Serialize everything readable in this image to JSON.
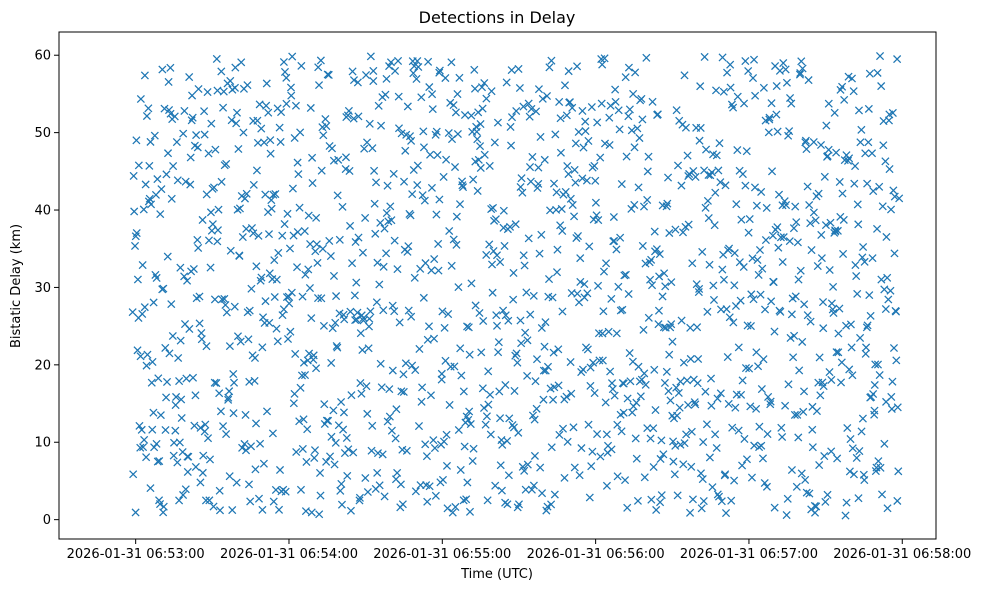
{
  "chart_data": {
    "type": "scatter",
    "title": "Detections in Delay",
    "xlabel": "Time (UTC)",
    "ylabel": "Bistatic Delay (km)",
    "marker": "x",
    "color": "#1f77b4",
    "xlim_minutes": [
      -0.5,
      5.22
    ],
    "ylim": [
      -2.5,
      63
    ],
    "x_ticks": [
      {
        "value": 0,
        "label": "2026-01-31 06:53:00"
      },
      {
        "value": 1,
        "label": "2026-01-31 06:54:00"
      },
      {
        "value": 2,
        "label": "2026-01-31 06:55:00"
      },
      {
        "value": 3,
        "label": "2026-01-31 06:56:00"
      },
      {
        "value": 4,
        "label": "2026-01-31 06:57:00"
      },
      {
        "value": 5,
        "label": "2026-01-31 06:58:00"
      }
    ],
    "y_ticks": [
      {
        "value": 0,
        "label": "0"
      },
      {
        "value": 10,
        "label": "10"
      },
      {
        "value": 20,
        "label": "20"
      },
      {
        "value": 30,
        "label": "30"
      },
      {
        "value": 40,
        "label": "40"
      },
      {
        "value": 50,
        "label": "50"
      },
      {
        "value": 60,
        "label": "60"
      }
    ],
    "x_start_minutes": -0.02,
    "x_end_minutes": 4.98,
    "point_count": 1500,
    "y_range_points": [
      0.5,
      59.9
    ],
    "points_note": "Dense, roughly uniform random scatter of detections between 06:52:59 and 06:57:59, delays 0.5–60 km"
  }
}
